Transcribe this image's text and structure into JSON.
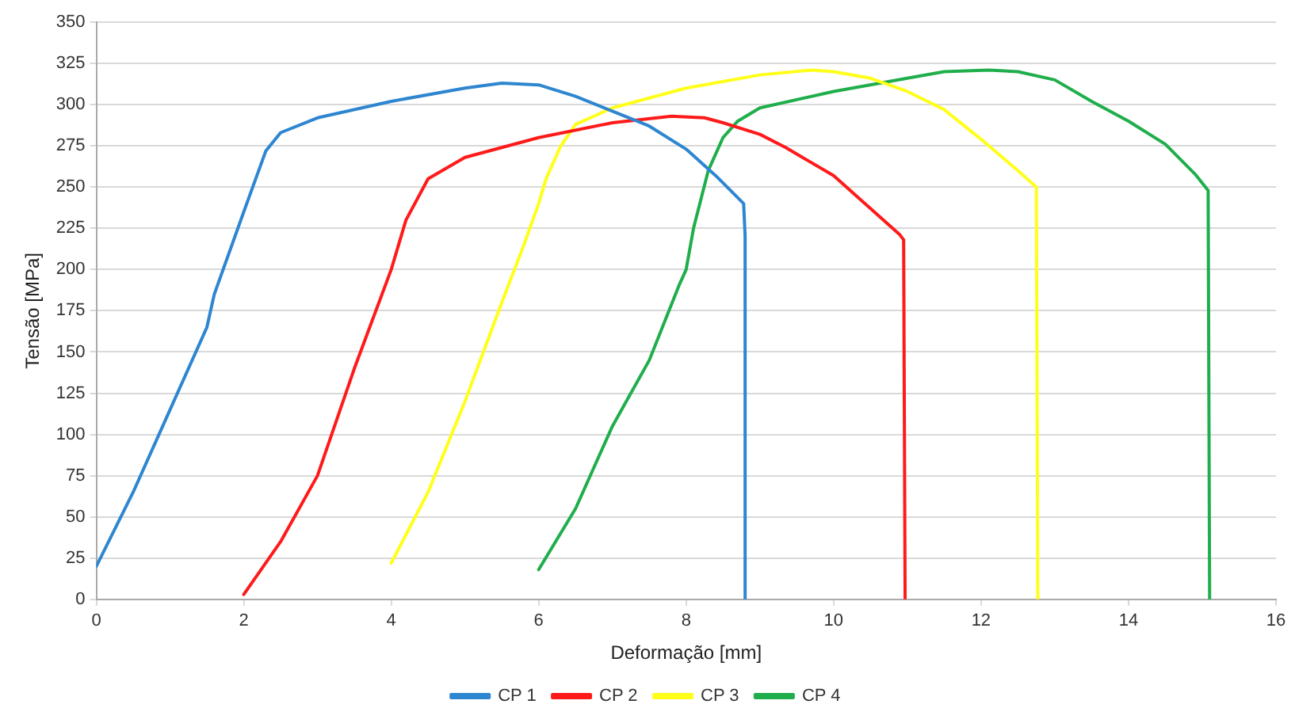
{
  "chart_data": {
    "type": "line",
    "xlabel": "Deformação [mm]",
    "ylabel": "Tensão [MPa]",
    "xlim": [
      0,
      16
    ],
    "xticks": [
      0,
      2,
      4,
      6,
      8,
      10,
      12,
      14,
      16
    ],
    "ylim": [
      0,
      350
    ],
    "yticks": [
      0,
      25,
      50,
      75,
      100,
      125,
      150,
      175,
      200,
      225,
      250,
      275,
      300,
      325,
      350
    ],
    "grid": "y",
    "legend": "bottom",
    "marker": "none",
    "line_style": "solid",
    "series": [
      {
        "name": "CP 1",
        "color": "#2e86d0",
        "x": [
          0,
          0.5,
          1,
          1.5,
          1.6,
          2,
          2.3,
          2.5,
          3,
          4,
          5,
          5.5,
          6,
          6.5,
          7,
          7.5,
          8,
          8.4,
          8.78,
          8.8,
          8.8
        ],
        "values": [
          20,
          65,
          115,
          165,
          185,
          235,
          272,
          283,
          292,
          302,
          310,
          313,
          312,
          305,
          296,
          287,
          273,
          257,
          240,
          220,
          0
        ]
      },
      {
        "name": "CP 2",
        "color": "#ff1a1a",
        "x": [
          2,
          2.5,
          3,
          3.5,
          4,
          4.2,
          4.5,
          5,
          6,
          7,
          7.8,
          8.25,
          8.5,
          9,
          9.35,
          9.5,
          10,
          10.5,
          10.9,
          10.95,
          10.97
        ],
        "values": [
          3,
          35,
          75,
          140,
          200,
          230,
          255,
          268,
          280,
          289,
          293,
          292,
          289,
          282,
          274,
          270,
          257,
          237,
          221,
          218,
          0
        ]
      },
      {
        "name": "CP 3",
        "color": "#ffff1a",
        "x": [
          4,
          4.5,
          5,
          5.5,
          5.8,
          6,
          6.1,
          6.3,
          6.5,
          7,
          8,
          9,
          9.7,
          10,
          10.5,
          11,
          11.5,
          12,
          12.5,
          12.75,
          12.77
        ],
        "values": [
          22,
          65,
          120,
          180,
          215,
          240,
          255,
          275,
          288,
          298,
          310,
          318,
          321,
          320,
          316,
          308,
          297,
          279,
          260,
          250,
          0
        ]
      },
      {
        "name": "CP 4",
        "color": "#1fae4b",
        "x": [
          6,
          6.5,
          7,
          7.5,
          7.9,
          8,
          8.1,
          8.3,
          8.5,
          8.7,
          9,
          10,
          11,
          11.5,
          12.1,
          12.5,
          13,
          13.5,
          14,
          14.5,
          14.9,
          15.08,
          15.1
        ],
        "values": [
          18,
          55,
          105,
          145,
          190,
          200,
          225,
          260,
          280,
          290,
          298,
          308,
          316,
          320,
          321,
          320,
          315,
          302,
          290,
          276,
          258,
          248,
          0
        ]
      }
    ]
  }
}
